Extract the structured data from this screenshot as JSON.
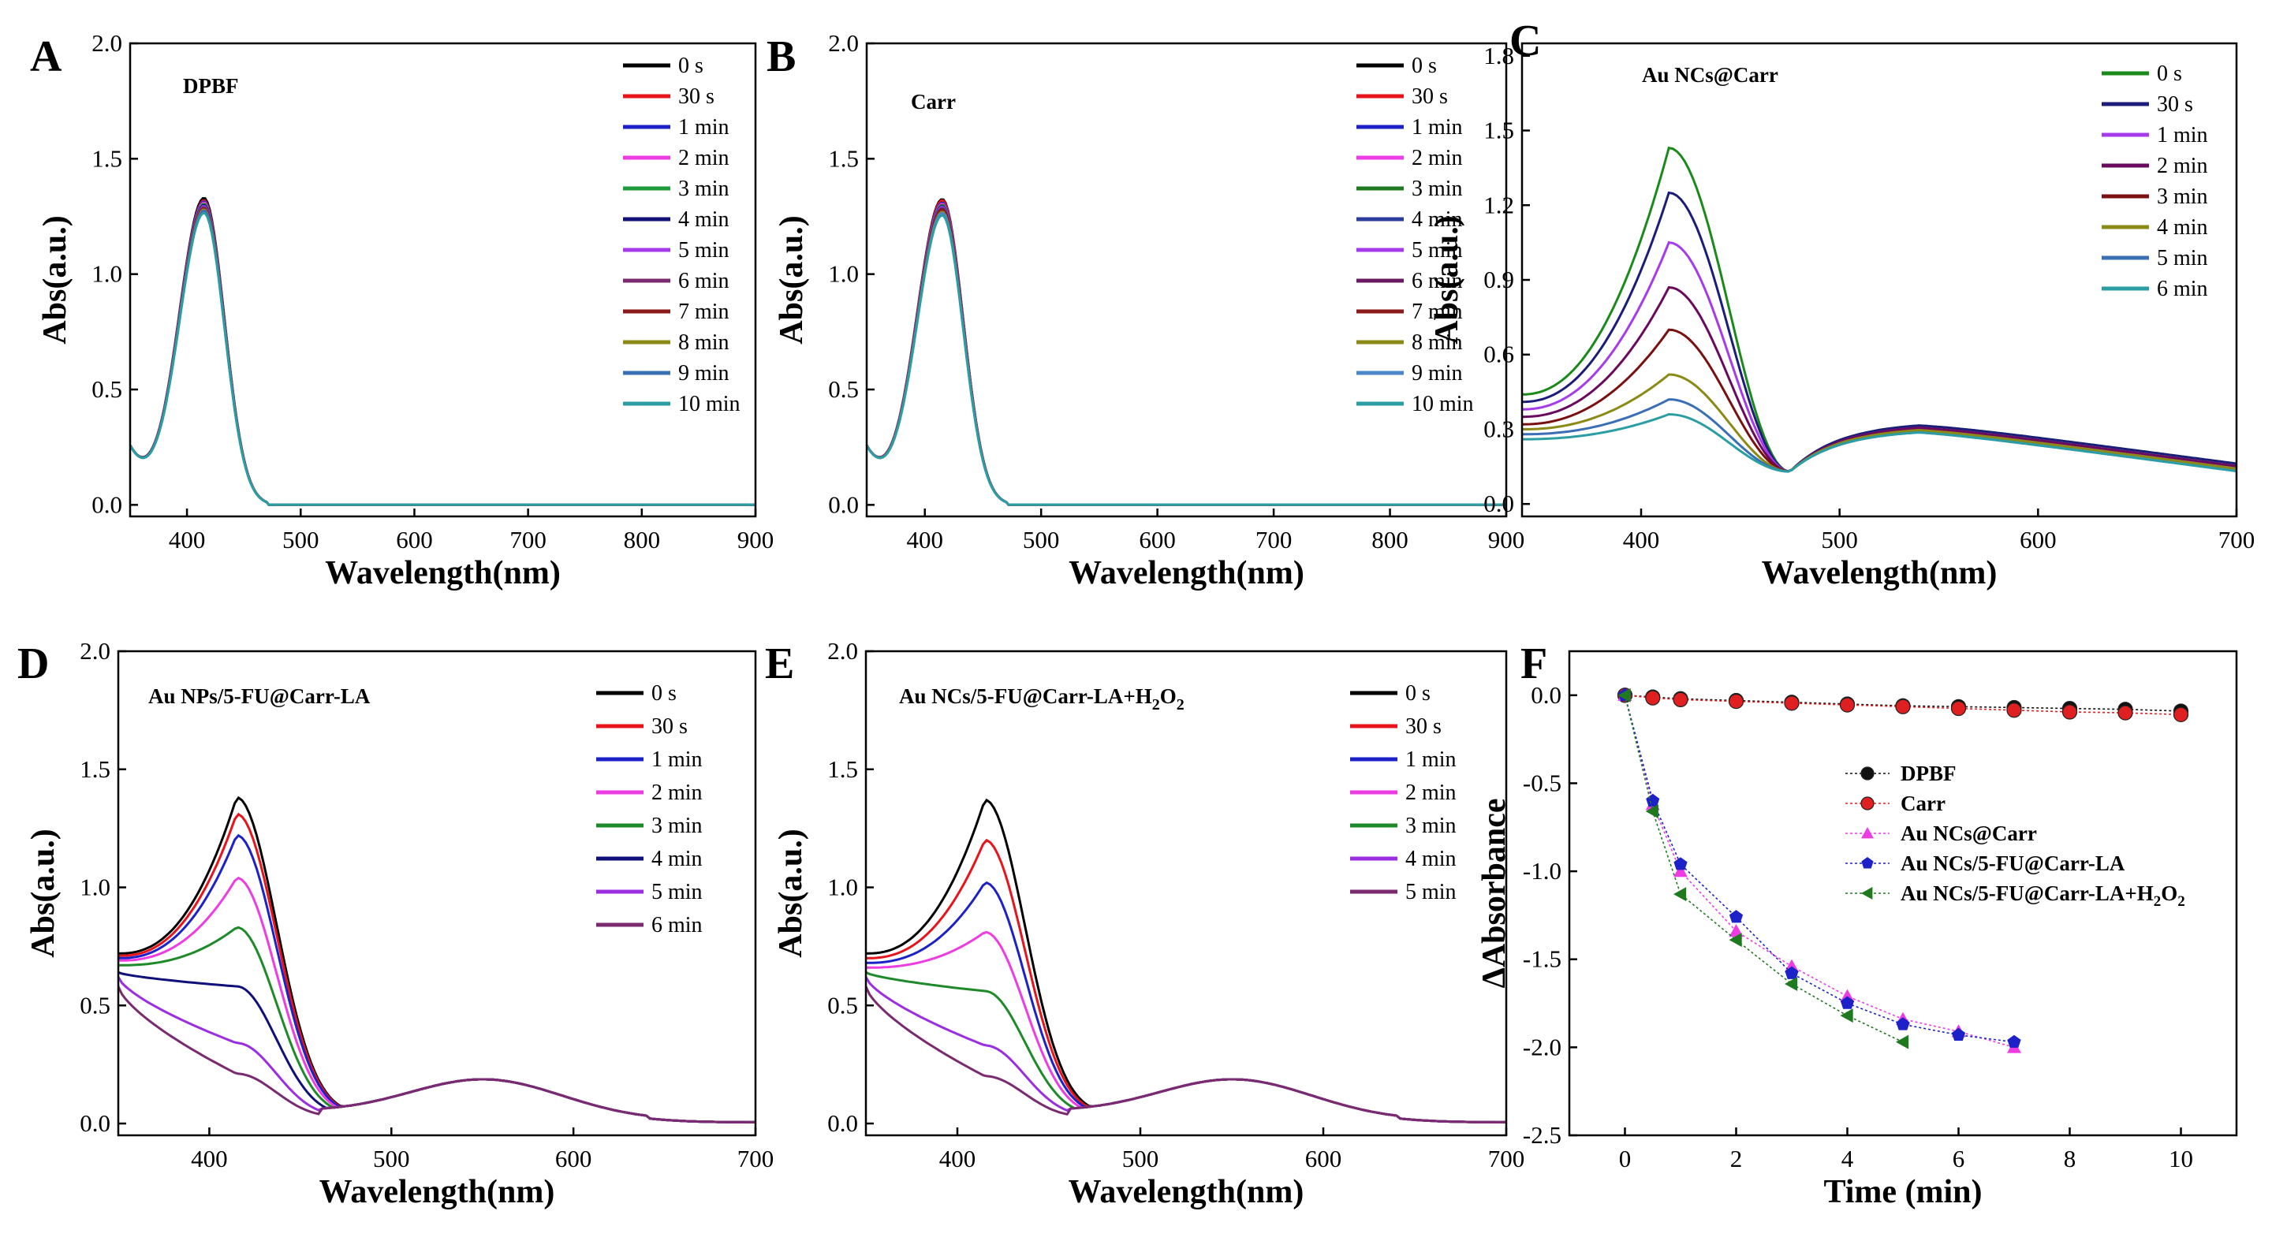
{
  "chart_data": [
    {
      "panel": "A",
      "type": "line",
      "title": "DPBF",
      "xlabel": "Wavelength(nm)",
      "ylabel": "Abs(a.u.)",
      "xlim": [
        350,
        900
      ],
      "ylim": [
        -0.05,
        2.0
      ],
      "xticks": [
        400,
        500,
        600,
        700,
        800,
        900
      ],
      "yticks": [
        0.0,
        0.5,
        1.0,
        1.5,
        2.0
      ],
      "legend": "top-right",
      "model": "soret",
      "series": [
        {
          "name": "0 s",
          "color": "#000000",
          "peak": 1.33
        },
        {
          "name": "30 s",
          "color": "#e8141b",
          "peak": 1.32
        },
        {
          "name": "1 min",
          "color": "#1d21c8",
          "peak": 1.315
        },
        {
          "name": "2 min",
          "color": "#ee3ce3",
          "peak": 1.31
        },
        {
          "name": "3 min",
          "color": "#1f9a3a",
          "peak": 1.305
        },
        {
          "name": "4 min",
          "color": "#12127a",
          "peak": 1.3
        },
        {
          "name": "5 min",
          "color": "#a53bea",
          "peak": 1.295
        },
        {
          "name": "6 min",
          "color": "#7b2a6f",
          "peak": 1.29
        },
        {
          "name": "7 min",
          "color": "#8b1a1a",
          "peak": 1.285
        },
        {
          "name": "8 min",
          "color": "#8c8a16",
          "peak": 1.28
        },
        {
          "name": "9 min",
          "color": "#3a6fb6",
          "peak": 1.275
        },
        {
          "name": "10 min",
          "color": "#2b9ea3",
          "peak": 1.265
        }
      ]
    },
    {
      "panel": "B",
      "type": "line",
      "title": "Carr",
      "xlabel": "Wavelength(nm)",
      "ylabel": "Abs(a.u.)",
      "xlim": [
        350,
        900
      ],
      "ylim": [
        -0.05,
        2.0
      ],
      "xticks": [
        400,
        500,
        600,
        700,
        800,
        900
      ],
      "yticks": [
        0.0,
        0.5,
        1.0,
        1.5,
        2.0
      ],
      "legend": "top-right",
      "model": "soret",
      "series": [
        {
          "name": "0 s",
          "color": "#000000",
          "peak": 1.325
        },
        {
          "name": "30 s",
          "color": "#e8141b",
          "peak": 1.32
        },
        {
          "name": "1 min",
          "color": "#1d21c8",
          "peak": 1.31
        },
        {
          "name": "2 min",
          "color": "#ee3ce3",
          "peak": 1.305
        },
        {
          "name": "3 min",
          "color": "#1f7a1f",
          "peak": 1.3
        },
        {
          "name": "4 min",
          "color": "#2b3c9c",
          "peak": 1.295
        },
        {
          "name": "5 min",
          "color": "#a53bea",
          "peak": 1.29
        },
        {
          "name": "6 min",
          "color": "#6a1a5e",
          "peak": 1.285
        },
        {
          "name": "7 min",
          "color": "#8b1a1a",
          "peak": 1.28
        },
        {
          "name": "8 min",
          "color": "#8c8a16",
          "peak": 1.27
        },
        {
          "name": "9 min",
          "color": "#4a86c8",
          "peak": 1.265
        },
        {
          "name": "10 min",
          "color": "#2b9ea3",
          "peak": 1.255
        }
      ]
    },
    {
      "panel": "C",
      "type": "line",
      "title": "Au NCs@Carr",
      "xlabel": "Wavelength(nm)",
      "ylabel": "Abs(a.u.)",
      "xlim": [
        340,
        700
      ],
      "ylim": [
        -0.05,
        1.85
      ],
      "xticks": [
        400,
        500,
        600,
        700
      ],
      "yticks": [
        0.0,
        0.3,
        0.6,
        0.9,
        1.2,
        1.5,
        1.8
      ],
      "legend": "top-right",
      "model": "degrade-c",
      "series": [
        {
          "name": "0 s",
          "color": "#1a8a1a",
          "peak": 1.43,
          "start": 0.44,
          "band": 0.33
        },
        {
          "name": "30 s",
          "color": "#1c1c7a",
          "peak": 1.25,
          "start": 0.41,
          "band": 0.33
        },
        {
          "name": "1 min",
          "color": "#a53bea",
          "peak": 1.05,
          "start": 0.38,
          "band": 0.32
        },
        {
          "name": "2 min",
          "color": "#6a0a5e",
          "peak": 0.87,
          "start": 0.35,
          "band": 0.32
        },
        {
          "name": "3 min",
          "color": "#7a1010",
          "peak": 0.7,
          "start": 0.32,
          "band": 0.31
        },
        {
          "name": "4 min",
          "color": "#8c8a16",
          "peak": 0.52,
          "start": 0.3,
          "band": 0.31
        },
        {
          "name": "5 min",
          "color": "#3a6fb6",
          "peak": 0.42,
          "start": 0.28,
          "band": 0.3
        },
        {
          "name": "6 min",
          "color": "#2b9ea3",
          "peak": 0.36,
          "start": 0.26,
          "band": 0.3
        }
      ]
    },
    {
      "panel": "D",
      "type": "line",
      "title": "Au NPs/5-FU@Carr-LA",
      "xlabel": "Wavelength(nm)",
      "ylabel": "Abs(a.u.)",
      "xlim": [
        350,
        700
      ],
      "ylim": [
        -0.05,
        2.0
      ],
      "xticks": [
        400,
        500,
        600,
        700
      ],
      "yticks": [
        0.0,
        0.5,
        1.0,
        1.5,
        2.0
      ],
      "legend": "top-right",
      "model": "degrade-d",
      "series": [
        {
          "name": "0 s",
          "color": "#000000",
          "peak": 1.38,
          "start": 0.72
        },
        {
          "name": "30 s",
          "color": "#e8141b",
          "peak": 1.31,
          "start": 0.71
        },
        {
          "name": "1 min",
          "color": "#1d21c8",
          "peak": 1.22,
          "start": 0.7
        },
        {
          "name": "2 min",
          "color": "#ee3ce3",
          "peak": 1.04,
          "start": 0.69
        },
        {
          "name": "3 min",
          "color": "#1f8a2a",
          "peak": 0.83,
          "start": 0.67
        },
        {
          "name": "4 min",
          "color": "#10107a",
          "peak": 0.58,
          "start": 0.64
        },
        {
          "name": "5 min",
          "color": "#9b2ee0",
          "peak": 0.34,
          "start": 0.62
        },
        {
          "name": "6 min",
          "color": "#7a2a6f",
          "peak": 0.21,
          "start": 0.58
        }
      ]
    },
    {
      "panel": "E",
      "type": "line",
      "title": "Au NCs/5-FU@Carr-LA+H",
      "title_sub": "2",
      "title_mid": "O",
      "title_sub2": "2",
      "xlabel": "Wavelength(nm)",
      "ylabel": "Abs(a.u.)",
      "xlim": [
        350,
        700
      ],
      "ylim": [
        -0.05,
        2.0
      ],
      "xticks": [
        400,
        500,
        600,
        700
      ],
      "yticks": [
        0.0,
        0.5,
        1.0,
        1.5,
        2.0
      ],
      "legend": "top-right",
      "model": "degrade-d",
      "series": [
        {
          "name": "0 s",
          "color": "#000000",
          "peak": 1.37,
          "start": 0.72
        },
        {
          "name": "30 s",
          "color": "#e8141b",
          "peak": 1.2,
          "start": 0.7
        },
        {
          "name": "1 min",
          "color": "#1d21c8",
          "peak": 1.02,
          "start": 0.68
        },
        {
          "name": "2 min",
          "color": "#ee3ce3",
          "peak": 0.81,
          "start": 0.66
        },
        {
          "name": "3 min",
          "color": "#1f8a2a",
          "peak": 0.56,
          "start": 0.64
        },
        {
          "name": "4 min",
          "color": "#9b2ee0",
          "peak": 0.33,
          "start": 0.62
        },
        {
          "name": "5 min",
          "color": "#7a2a6f",
          "peak": 0.2,
          "start": 0.58
        }
      ]
    },
    {
      "panel": "F",
      "type": "scatter",
      "title": "",
      "xlabel": "Time (min)",
      "ylabel": "ΔAbsorbance",
      "xlim": [
        -1,
        11
      ],
      "ylim": [
        -2.5,
        0.25
      ],
      "xticks": [
        0,
        2,
        4,
        6,
        8,
        10
      ],
      "yticks": [
        0.0,
        -0.5,
        -1.0,
        -1.5,
        -2.0,
        -2.5
      ],
      "legend": "center-right",
      "series": [
        {
          "name": "DPBF",
          "color": "#111111",
          "marker": "circle",
          "x": [
            0,
            0.5,
            1,
            2,
            3,
            4,
            5,
            6,
            7,
            8,
            9,
            10
          ],
          "y": [
            0,
            -0.01,
            -0.02,
            -0.03,
            -0.04,
            -0.05,
            -0.06,
            -0.065,
            -0.07,
            -0.075,
            -0.08,
            -0.09
          ]
        },
        {
          "name": "Carr",
          "color": "#e02020",
          "marker": "circle",
          "x": [
            0,
            0.5,
            1,
            2,
            3,
            4,
            5,
            6,
            7,
            8,
            9,
            10
          ],
          "y": [
            0,
            -0.015,
            -0.025,
            -0.035,
            -0.045,
            -0.055,
            -0.065,
            -0.075,
            -0.085,
            -0.095,
            -0.1,
            -0.11
          ]
        },
        {
          "name": "Au NCs@Carr",
          "color": "#ee3ce3",
          "marker": "triangle",
          "x": [
            0,
            0.5,
            1,
            2,
            3,
            4,
            5,
            6,
            7
          ],
          "y": [
            0,
            -0.62,
            -1.0,
            -1.34,
            -1.54,
            -1.71,
            -1.84,
            -1.91,
            -2.0
          ]
        },
        {
          "name": "Au NCs/5-FU@Carr-LA",
          "color": "#1d21c8",
          "marker": "pentagon",
          "x": [
            0,
            0.5,
            1,
            2,
            3,
            4,
            5,
            6,
            7
          ],
          "y": [
            0,
            -0.6,
            -0.96,
            -1.26,
            -1.58,
            -1.75,
            -1.87,
            -1.93,
            -1.97
          ]
        },
        {
          "name": "Au NCs/5-FU@Carr-LA+H",
          "name_sub": "2",
          "name_mid": "O",
          "name_sub2": "2",
          "color": "#1f7a1f",
          "marker": "triangle-left",
          "x": [
            0,
            0.5,
            1,
            2,
            3,
            4,
            5
          ],
          "y": [
            0,
            -0.66,
            -1.13,
            -1.39,
            -1.64,
            -1.82,
            -1.97
          ]
        }
      ]
    }
  ],
  "panel_letters": [
    "A",
    "B",
    "C",
    "D",
    "E",
    "F"
  ]
}
